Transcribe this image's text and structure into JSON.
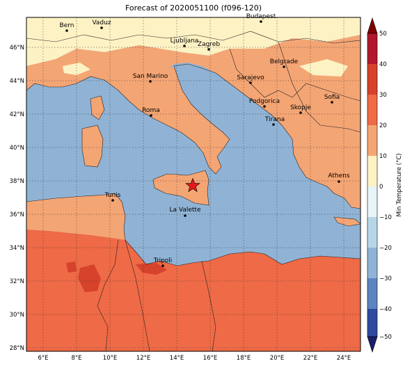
{
  "title": "Forecast of 2020051100 (f096-120)",
  "colorbar": {
    "label": "Min Temperature (°C)",
    "ticks": [
      "50",
      "40",
      "30",
      "20",
      "10",
      "0",
      "−10",
      "−20",
      "−30",
      "−40",
      "−50"
    ],
    "colors": [
      "#7f0000",
      "#b2182b",
      "#d6422b",
      "#ef6a46",
      "#f4a574",
      "#fdf2c4",
      "#e8f4f8",
      "#b6d6e8",
      "#90b3d5",
      "#5d84bf",
      "#2d4a9e",
      "#1b1f6b"
    ]
  },
  "axes": {
    "lon_ticks": [
      "6°E",
      "8°E",
      "10°E",
      "12°E",
      "14°E",
      "16°E",
      "18°E",
      "20°E",
      "22°E",
      "24°E"
    ],
    "lat_ticks": [
      "46°N",
      "44°N",
      "42°N",
      "40°N",
      "38°N",
      "36°N",
      "34°N",
      "32°N",
      "30°N",
      "28°N"
    ]
  },
  "cities": [
    {
      "name": "Bern"
    },
    {
      "name": "Vaduz"
    },
    {
      "name": "Budapest"
    },
    {
      "name": "Ljubljana"
    },
    {
      "name": "Zagreb"
    },
    {
      "name": "Belgrade"
    },
    {
      "name": "San Marino"
    },
    {
      "name": "Sarajevo"
    },
    {
      "name": "Sofia"
    },
    {
      "name": "Roma"
    },
    {
      "name": "Podgorica"
    },
    {
      "name": "Skopje"
    },
    {
      "name": "Tirana"
    },
    {
      "name": "Athens"
    },
    {
      "name": "Tunis"
    },
    {
      "name": "La Valette"
    },
    {
      "name": "Tripoli"
    }
  ],
  "marker": {
    "type": "star",
    "color": "#e31a1c"
  },
  "legend_colors": {
    "sea": "#90b3d5",
    "warm": "#f4a574",
    "hot": "#ef6a46",
    "mild": "#fdf2c4"
  }
}
